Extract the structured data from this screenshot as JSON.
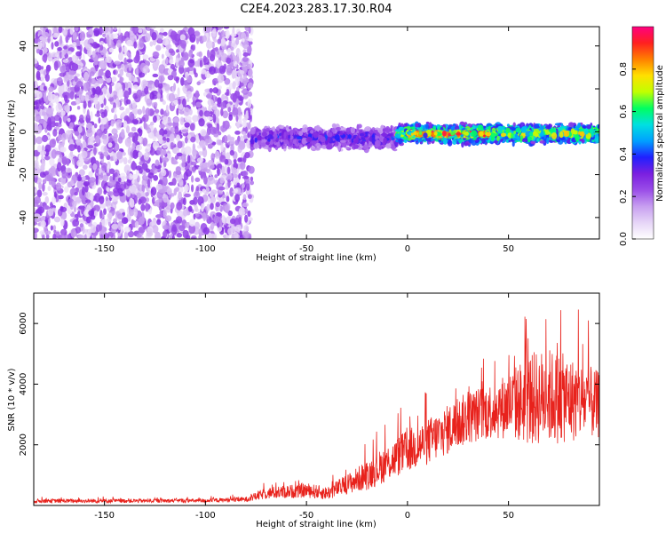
{
  "figure": {
    "title": "C2E4.2023.283.17.30.R04"
  },
  "chart_data": [
    {
      "type": "heatmap",
      "xlabel": "Height of straight line (km)",
      "ylabel": "Frequency (Hz)",
      "xlim": [
        -185,
        95
      ],
      "ylim": [
        -50,
        49
      ],
      "x_ticks": [
        -150,
        -100,
        -50,
        0,
        50
      ],
      "y_ticks": [
        -40,
        -20,
        0,
        20,
        40
      ],
      "grid": false,
      "colormap": [
        "#ffffff",
        "#e6d5f7",
        "#c79ef0",
        "#9a4de8",
        "#7a1fe0",
        "#2020ff",
        "#00a0ff",
        "#00e0e0",
        "#00ff60",
        "#c0ff00",
        "#ffe000",
        "#ff8000",
        "#ff2020",
        "#ff0080"
      ],
      "colorbar": {
        "label": "Normalized spectral amplitude",
        "range": [
          0,
          1
        ],
        "ticks": [
          0.0,
          0.2,
          0.4,
          0.6,
          0.8
        ]
      },
      "regions": [
        {
          "x_range": [
            -185,
            -77
          ],
          "y_range": [
            -50,
            49
          ],
          "pattern": "broadband noise",
          "amplitude": 0.15
        },
        {
          "x_range": [
            -77,
            -5
          ],
          "center_freq": -3,
          "bandwidth": 6,
          "amplitude": 0.35
        },
        {
          "x_range": [
            -5,
            95
          ],
          "center_freq": -1,
          "bandwidth": 5,
          "amplitude": 0.7
        },
        {
          "x_range": [
            0,
            40
          ],
          "center_freq": -1,
          "bandwidth": 1,
          "amplitude": 0.9
        }
      ]
    },
    {
      "type": "line",
      "xlabel": "Height of straight line (km)",
      "ylabel": "SNR (10 * v/v)",
      "xlim": [
        -185,
        95
      ],
      "ylim": [
        0,
        7000
      ],
      "x_ticks": [
        -150,
        -100,
        -50,
        0,
        50
      ],
      "y_ticks": [
        2000,
        4000,
        6000
      ],
      "grid": false,
      "color": "#e8221c",
      "series": [
        {
          "x": [
            -185,
            -150,
            -100,
            -80,
            -70,
            -60,
            -50,
            -40,
            -30,
            -20,
            -10,
            0,
            10,
            20,
            30,
            40,
            50,
            60,
            70,
            80,
            90,
            95
          ],
          "y": [
            150,
            150,
            160,
            200,
            400,
            450,
            500,
            400,
            700,
            1000,
            1400,
            1800,
            2100,
            2500,
            2900,
            3100,
            3300,
            3500,
            3600,
            3500,
            3400,
            3300
          ],
          "spread": [
            120,
            120,
            120,
            150,
            350,
            400,
            450,
            400,
            600,
            900,
            1100,
            1300,
            1400,
            1500,
            1600,
            1700,
            2000,
            2800,
            2900,
            2600,
            2200,
            2000
          ]
        }
      ]
    }
  ]
}
